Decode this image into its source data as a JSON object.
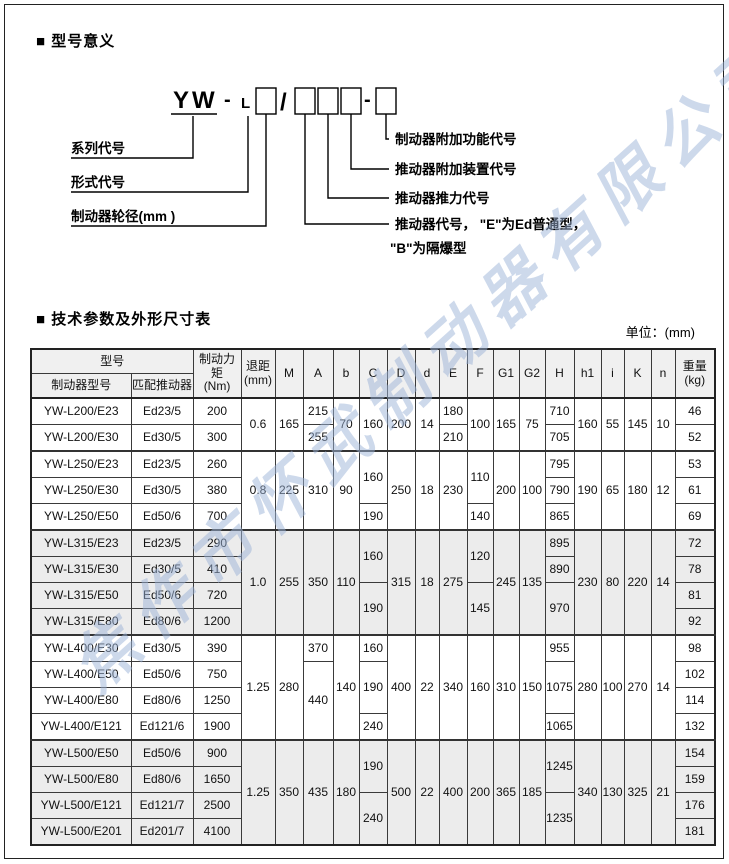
{
  "page": {
    "section1_title": "■ 型号意义",
    "section2_title": "■ 技术参数及外形尺寸表",
    "unit_note": "单位：(mm)",
    "watermark_text": "焦作市怀武制动器有限公司"
  },
  "colors": {
    "watermark": "#9db4d8",
    "header_bg": "#f0f0f0",
    "shaded_row_bg": "#ececec",
    "border": "#333333"
  },
  "model_diagram": {
    "series_code": "YW",
    "dash1": "-",
    "type_letter": "L",
    "slash": "/",
    "dash2": "-",
    "left_labels": {
      "series": "系列代号",
      "type": "形式代号",
      "wheel_dia": "制动器轮径(mm )"
    },
    "right_labels": {
      "brake_extra_func": "制动器附加功能代号",
      "thruster_extra_device": "推动器附加装置代号",
      "thruster_force": "推动器推力代号",
      "thruster_code_line1": "推动器代号， \"E\"为Ed普通型，",
      "thruster_code_line2": "\"B\"为隔爆型"
    }
  },
  "table": {
    "header": {
      "model": "型号",
      "sub_brake": "制动器型号",
      "sub_thruster": "匹配推动器",
      "torque": "制动力矩\n(Nm)",
      "retract": "退距\n(mm)",
      "dims": [
        "M",
        "A",
        "b",
        "C",
        "D",
        "d",
        "E",
        "F",
        "G1",
        "G2",
        "H",
        "h1",
        "i",
        "K",
        "n"
      ],
      "weight": "重量\n(kg)"
    },
    "rows": [
      {
        "g": false,
        "s": false,
        "cells": [
          "YW-L200/E23",
          "Ed23/5",
          "200",
          [
            "0.6",
            2
          ],
          [
            "165",
            2
          ],
          "215",
          [
            "70",
            2
          ],
          [
            "160",
            2
          ],
          [
            "200",
            2
          ],
          [
            "14",
            2
          ],
          "180",
          [
            "100",
            2
          ],
          [
            "165",
            2
          ],
          [
            "75",
            2
          ],
          "710",
          [
            "160",
            2
          ],
          [
            "55",
            2
          ],
          [
            "145",
            2
          ],
          [
            "10",
            2
          ],
          "46"
        ]
      },
      {
        "g": false,
        "s": false,
        "cells": [
          "YW-L200/E30",
          "Ed30/5",
          "300",
          "255",
          "210",
          "705",
          "52"
        ]
      },
      {
        "g": true,
        "s": false,
        "cells": [
          "YW-L250/E23",
          "Ed23/5",
          "260",
          [
            "0.8",
            3
          ],
          [
            "225",
            3
          ],
          [
            "310",
            3
          ],
          [
            "90",
            3
          ],
          [
            "160",
            2
          ],
          [
            "250",
            3
          ],
          [
            "18",
            3
          ],
          [
            "230",
            3
          ],
          [
            "110",
            2
          ],
          [
            "200",
            3
          ],
          [
            "100",
            3
          ],
          "795",
          [
            "190",
            3
          ],
          [
            "65",
            3
          ],
          [
            "180",
            3
          ],
          [
            "12",
            3
          ],
          "53"
        ]
      },
      {
        "g": false,
        "s": false,
        "cells": [
          "YW-L250/E30",
          "Ed30/5",
          "380",
          "790",
          "61"
        ]
      },
      {
        "g": false,
        "s": false,
        "cells": [
          "YW-L250/E50",
          "Ed50/6",
          "700",
          "190",
          "140",
          "865",
          "69"
        ]
      },
      {
        "g": true,
        "s": true,
        "cells": [
          "YW-L315/E23",
          "Ed23/5",
          "290",
          [
            "1.0",
            4
          ],
          [
            "255",
            4
          ],
          [
            "350",
            4
          ],
          [
            "110",
            4
          ],
          [
            "160",
            2
          ],
          [
            "315",
            4
          ],
          [
            "18",
            4
          ],
          [
            "275",
            4
          ],
          [
            "120",
            2
          ],
          [
            "245",
            4
          ],
          [
            "135",
            4
          ],
          "895",
          [
            "230",
            4
          ],
          [
            "80",
            4
          ],
          [
            "220",
            4
          ],
          [
            "14",
            4
          ],
          "72"
        ]
      },
      {
        "g": false,
        "s": true,
        "cells": [
          "YW-L315/E30",
          "Ed30/5",
          "410",
          "890",
          "78"
        ]
      },
      {
        "g": false,
        "s": true,
        "cells": [
          "YW-L315/E50",
          "Ed50/6",
          "720",
          [
            "190",
            2
          ],
          [
            "145",
            2
          ],
          [
            "970",
            2
          ],
          "81"
        ]
      },
      {
        "g": false,
        "s": true,
        "cells": [
          "YW-L315/E80",
          "Ed80/6",
          "1200",
          "92"
        ]
      },
      {
        "g": true,
        "s": false,
        "cells": [
          "YW-L400/E30",
          "Ed30/5",
          "390",
          [
            "1.25",
            4
          ],
          [
            "280",
            4
          ],
          "370",
          [
            "140",
            4
          ],
          "160",
          [
            "400",
            4
          ],
          [
            "22",
            4
          ],
          [
            "340",
            4
          ],
          [
            "160",
            4
          ],
          [
            "310",
            4
          ],
          [
            "150",
            4
          ],
          "955",
          [
            "280",
            4
          ],
          [
            "100",
            4
          ],
          [
            "270",
            4
          ],
          [
            "14",
            4
          ],
          "98"
        ]
      },
      {
        "g": false,
        "s": false,
        "cells": [
          "YW-L400/E50",
          "Ed50/6",
          "750",
          [
            "440",
            3
          ],
          [
            "190",
            2
          ],
          [
            "1075",
            2
          ],
          "102"
        ]
      },
      {
        "g": false,
        "s": false,
        "cells": [
          "YW-L400/E80",
          "Ed80/6",
          "1250",
          "114"
        ]
      },
      {
        "g": false,
        "s": false,
        "cells": [
          "YW-L400/E121",
          "Ed121/6",
          "1900",
          "240",
          "1065",
          "132"
        ]
      },
      {
        "g": true,
        "s": true,
        "cells": [
          "YW-L500/E50",
          "Ed50/6",
          "900",
          [
            "1.25",
            4
          ],
          [
            "350",
            4
          ],
          [
            "435",
            4
          ],
          [
            "180",
            4
          ],
          [
            "190",
            2
          ],
          [
            "500",
            4
          ],
          [
            "22",
            4
          ],
          [
            "400",
            4
          ],
          [
            "200",
            4
          ],
          [
            "365",
            4
          ],
          [
            "185",
            4
          ],
          [
            "1245",
            2
          ],
          [
            "340",
            4
          ],
          [
            "130",
            4
          ],
          [
            "325",
            4
          ],
          [
            "21",
            4
          ],
          "154"
        ]
      },
      {
        "g": false,
        "s": true,
        "cells": [
          "YW-L500/E80",
          "Ed80/6",
          "1650",
          "159"
        ]
      },
      {
        "g": false,
        "s": true,
        "cells": [
          "YW-L500/E121",
          "Ed121/7",
          "2500",
          [
            "240",
            2
          ],
          [
            "1235",
            2
          ],
          "176"
        ]
      },
      {
        "g": false,
        "s": true,
        "cells": [
          "YW-L500/E201",
          "Ed201/7",
          "4100",
          "181"
        ]
      }
    ]
  }
}
